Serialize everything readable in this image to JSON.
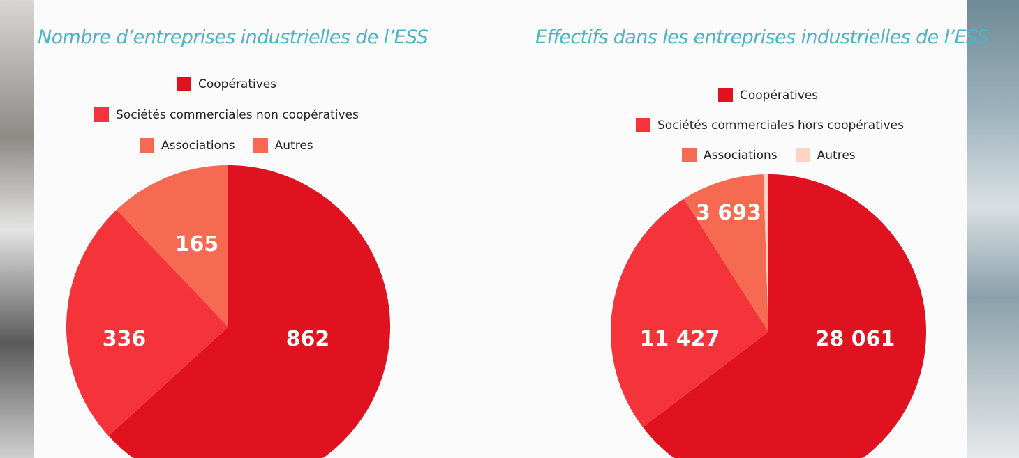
{
  "chart_data": [
    {
      "type": "pie",
      "title": "Nombre d’entreprises industrielles de l’ESS",
      "legend_position": "top",
      "categories": [
        "Coopératives",
        "Sociétés commerciales non coopératives",
        "Associations",
        "Autres"
      ],
      "values": [
        862,
        336,
        165,
        0
      ],
      "data_labels": [
        "862",
        "336",
        "165",
        ""
      ],
      "colors": [
        "#e0121f",
        "#f5333a",
        "#f66a52",
        "#f66a52"
      ]
    },
    {
      "type": "pie",
      "title": "Effectifs dans les entreprises industrielles de l’ESS",
      "legend_position": "top",
      "categories": [
        "Coopératives",
        "Sociétés commerciales hors coopératives",
        "Associations",
        "Autres"
      ],
      "values": [
        28061,
        11427,
        3693,
        220
      ],
      "data_labels": [
        "28 061",
        "11 427",
        "3 693",
        ""
      ],
      "colors": [
        "#e0121f",
        "#f5333a",
        "#f66a52",
        "#fcd3c4"
      ]
    }
  ]
}
